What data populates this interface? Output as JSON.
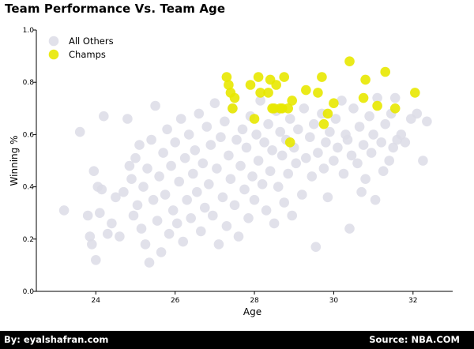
{
  "header": {
    "title": "Team Performance Vs. Team Age"
  },
  "footer": {
    "left": "By: eyalshafran.com",
    "right": "Source: NBA.COM"
  },
  "chart_data": {
    "type": "scatter",
    "title": "Team Performance Vs. Team Age",
    "xlabel": "Age",
    "ylabel": "Winning %",
    "xlim": [
      22.5,
      33
    ],
    "ylim": [
      0,
      1.0
    ],
    "xticks": [
      "24",
      "26",
      "28",
      "30",
      "32"
    ],
    "yticks": [
      "0.0",
      "0.2",
      "0.4",
      "0.6",
      "0.8",
      "1.0"
    ],
    "grid": false,
    "legend": "top-left",
    "series": [
      {
        "name": "All Others",
        "color": "#dcdce6",
        "points": [
          [
            23.2,
            0.31
          ],
          [
            23.6,
            0.61
          ],
          [
            23.8,
            0.29
          ],
          [
            23.85,
            0.21
          ],
          [
            23.9,
            0.18
          ],
          [
            23.95,
            0.46
          ],
          [
            24.0,
            0.12
          ],
          [
            24.05,
            0.4
          ],
          [
            24.1,
            0.3
          ],
          [
            24.15,
            0.39
          ],
          [
            24.2,
            0.67
          ],
          [
            24.3,
            0.22
          ],
          [
            24.4,
            0.26
          ],
          [
            24.5,
            0.36
          ],
          [
            24.6,
            0.21
          ],
          [
            24.7,
            0.38
          ],
          [
            24.8,
            0.66
          ],
          [
            24.85,
            0.48
          ],
          [
            24.9,
            0.43
          ],
          [
            24.95,
            0.29
          ],
          [
            25.0,
            0.51
          ],
          [
            25.05,
            0.33
          ],
          [
            25.1,
            0.56
          ],
          [
            25.15,
            0.24
          ],
          [
            25.2,
            0.4
          ],
          [
            25.25,
            0.18
          ],
          [
            25.3,
            0.47
          ],
          [
            25.35,
            0.11
          ],
          [
            25.4,
            0.58
          ],
          [
            25.45,
            0.35
          ],
          [
            25.5,
            0.71
          ],
          [
            25.55,
            0.27
          ],
          [
            25.6,
            0.44
          ],
          [
            25.65,
            0.15
          ],
          [
            25.7,
            0.53
          ],
          [
            25.75,
            0.37
          ],
          [
            25.8,
            0.62
          ],
          [
            25.85,
            0.22
          ],
          [
            25.9,
            0.48
          ],
          [
            25.95,
            0.31
          ],
          [
            26.0,
            0.57
          ],
          [
            26.05,
            0.26
          ],
          [
            26.1,
            0.42
          ],
          [
            26.15,
            0.66
          ],
          [
            26.2,
            0.19
          ],
          [
            26.25,
            0.51
          ],
          [
            26.3,
            0.35
          ],
          [
            26.35,
            0.6
          ],
          [
            26.4,
            0.28
          ],
          [
            26.45,
            0.45
          ],
          [
            26.5,
            0.54
          ],
          [
            26.55,
            0.38
          ],
          [
            26.6,
            0.68
          ],
          [
            26.65,
            0.23
          ],
          [
            26.7,
            0.49
          ],
          [
            26.75,
            0.32
          ],
          [
            26.8,
            0.63
          ],
          [
            26.85,
            0.41
          ],
          [
            26.9,
            0.56
          ],
          [
            26.95,
            0.29
          ],
          [
            27.0,
            0.72
          ],
          [
            27.05,
            0.47
          ],
          [
            27.1,
            0.18
          ],
          [
            27.15,
            0.59
          ],
          [
            27.2,
            0.36
          ],
          [
            27.25,
            0.65
          ],
          [
            27.3,
            0.25
          ],
          [
            27.35,
            0.52
          ],
          [
            27.4,
            0.43
          ],
          [
            27.45,
            0.7
          ],
          [
            27.5,
            0.33
          ],
          [
            27.55,
            0.58
          ],
          [
            27.6,
            0.21
          ],
          [
            27.65,
            0.48
          ],
          [
            27.7,
            0.62
          ],
          [
            27.75,
            0.39
          ],
          [
            27.8,
            0.55
          ],
          [
            27.85,
            0.28
          ],
          [
            27.9,
            0.67
          ],
          [
            27.95,
            0.44
          ],
          [
            28.0,
            0.35
          ],
          [
            28.05,
            0.6
          ],
          [
            28.1,
            0.5
          ],
          [
            28.15,
            0.73
          ],
          [
            28.2,
            0.41
          ],
          [
            28.25,
            0.57
          ],
          [
            28.3,
            0.31
          ],
          [
            28.35,
            0.64
          ],
          [
            28.4,
            0.46
          ],
          [
            28.45,
            0.54
          ],
          [
            28.5,
            0.26
          ],
          [
            28.55,
            0.69
          ],
          [
            28.6,
            0.4
          ],
          [
            28.65,
            0.61
          ],
          [
            28.7,
            0.52
          ],
          [
            28.75,
            0.34
          ],
          [
            28.8,
            0.58
          ],
          [
            28.85,
            0.45
          ],
          [
            28.9,
            0.66
          ],
          [
            28.95,
            0.29
          ],
          [
            29.0,
            0.55
          ],
          [
            29.05,
            0.49
          ],
          [
            29.1,
            0.62
          ],
          [
            29.2,
            0.37
          ],
          [
            29.25,
            0.7
          ],
          [
            29.3,
            0.51
          ],
          [
            29.4,
            0.59
          ],
          [
            29.45,
            0.44
          ],
          [
            29.5,
            0.64
          ],
          [
            29.55,
            0.17
          ],
          [
            29.6,
            0.53
          ],
          [
            29.7,
            0.68
          ],
          [
            29.75,
            0.47
          ],
          [
            29.8,
            0.57
          ],
          [
            29.85,
            0.36
          ],
          [
            29.9,
            0.61
          ],
          [
            30.0,
            0.5
          ],
          [
            30.05,
            0.66
          ],
          [
            30.1,
            0.55
          ],
          [
            30.2,
            0.73
          ],
          [
            30.25,
            0.45
          ],
          [
            30.3,
            0.6
          ],
          [
            30.35,
            0.58
          ],
          [
            30.4,
            0.24
          ],
          [
            30.45,
            0.52
          ],
          [
            30.5,
            0.7
          ],
          [
            30.6,
            0.49
          ],
          [
            30.65,
            0.63
          ],
          [
            30.7,
            0.38
          ],
          [
            30.75,
            0.56
          ],
          [
            30.8,
            0.43
          ],
          [
            30.9,
            0.67
          ],
          [
            30.95,
            0.53
          ],
          [
            31.0,
            0.6
          ],
          [
            31.05,
            0.35
          ],
          [
            31.1,
            0.74
          ],
          [
            31.2,
            0.57
          ],
          [
            31.25,
            0.46
          ],
          [
            31.3,
            0.64
          ],
          [
            31.4,
            0.5
          ],
          [
            31.45,
            0.68
          ],
          [
            31.5,
            0.55
          ],
          [
            31.55,
            0.74
          ],
          [
            31.6,
            0.58
          ],
          [
            31.7,
            0.6
          ],
          [
            31.8,
            0.57
          ],
          [
            31.95,
            0.66
          ],
          [
            32.1,
            0.68
          ],
          [
            32.25,
            0.5
          ],
          [
            32.35,
            0.65
          ]
        ]
      },
      {
        "name": "Champs",
        "color": "#e8e800",
        "points": [
          [
            27.3,
            0.82
          ],
          [
            27.35,
            0.79
          ],
          [
            27.4,
            0.76
          ],
          [
            27.45,
            0.7
          ],
          [
            27.5,
            0.74
          ],
          [
            27.9,
            0.79
          ],
          [
            28.0,
            0.66
          ],
          [
            28.1,
            0.82
          ],
          [
            28.15,
            0.76
          ],
          [
            28.35,
            0.76
          ],
          [
            28.4,
            0.81
          ],
          [
            28.45,
            0.7
          ],
          [
            28.5,
            0.7
          ],
          [
            28.55,
            0.79
          ],
          [
            28.65,
            0.7
          ],
          [
            28.7,
            0.7
          ],
          [
            28.75,
            0.82
          ],
          [
            28.85,
            0.7
          ],
          [
            28.9,
            0.57
          ],
          [
            28.95,
            0.73
          ],
          [
            29.3,
            0.77
          ],
          [
            29.6,
            0.76
          ],
          [
            29.7,
            0.82
          ],
          [
            29.75,
            0.64
          ],
          [
            29.85,
            0.68
          ],
          [
            30.0,
            0.72
          ],
          [
            30.4,
            0.88
          ],
          [
            30.75,
            0.74
          ],
          [
            30.8,
            0.81
          ],
          [
            31.1,
            0.71
          ],
          [
            31.3,
            0.84
          ],
          [
            31.55,
            0.7
          ],
          [
            32.05,
            0.76
          ]
        ]
      }
    ]
  }
}
